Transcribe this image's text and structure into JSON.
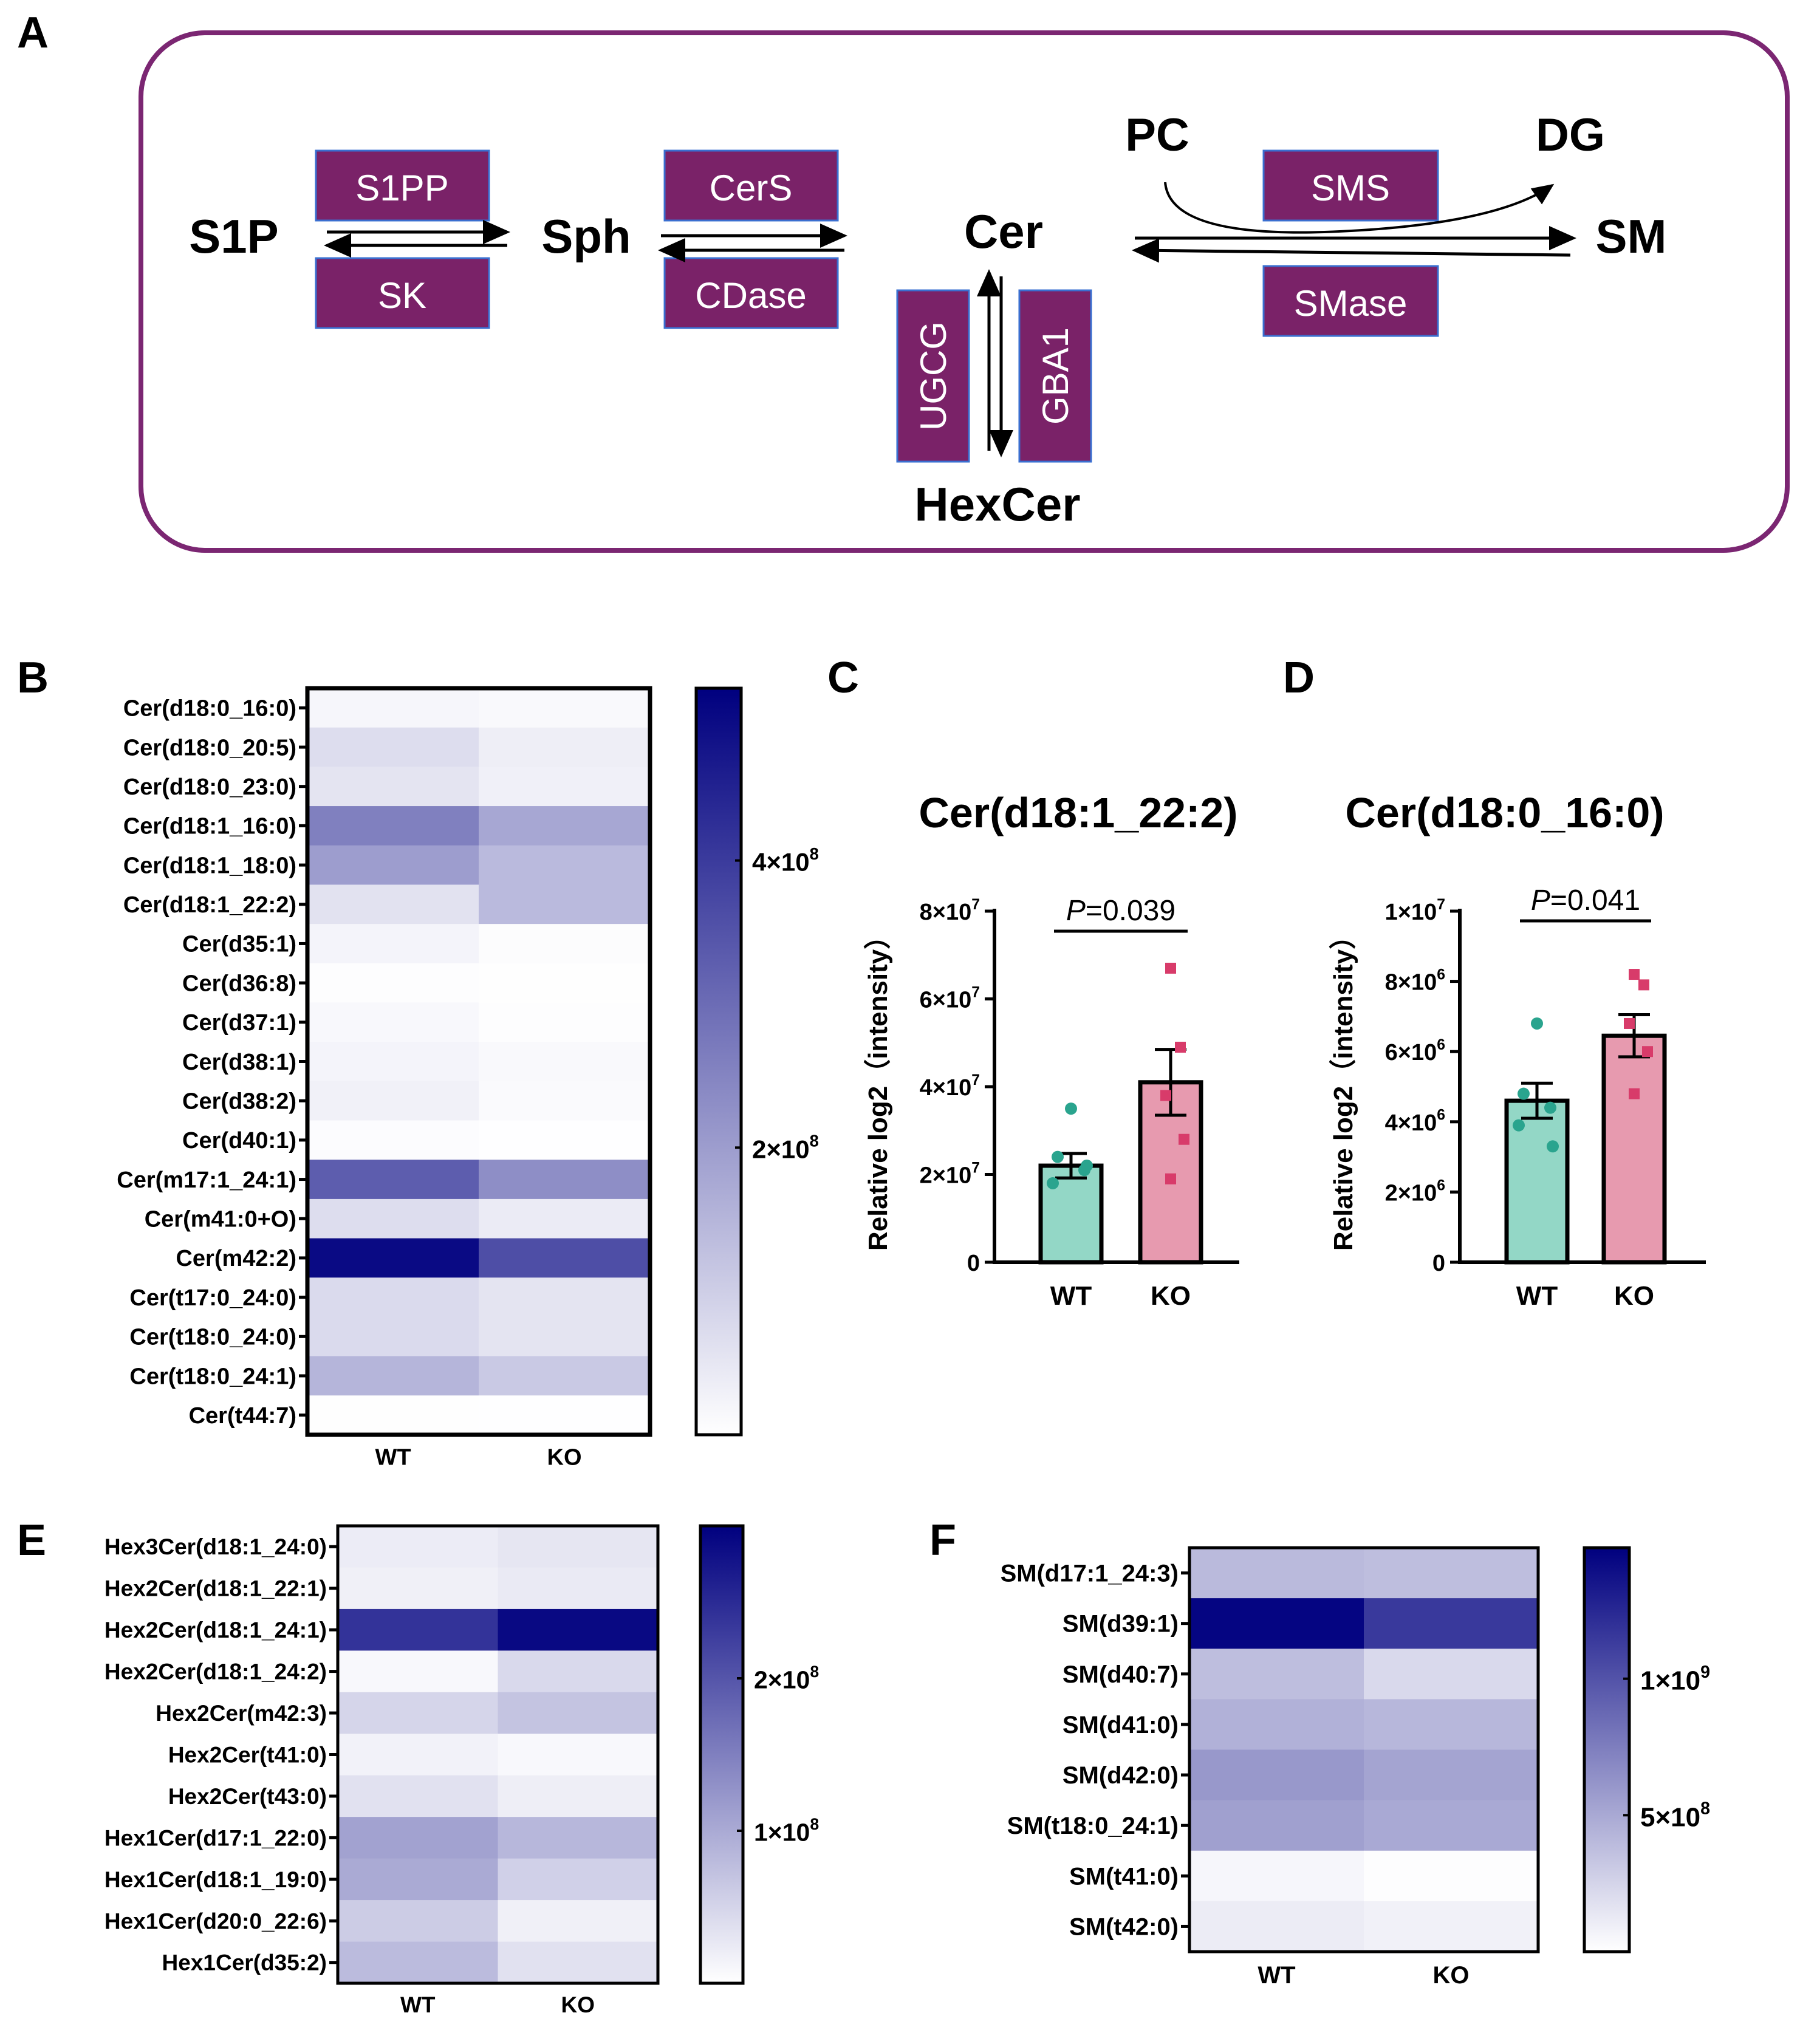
{
  "panels": {
    "A": "A",
    "B": "B",
    "C": "C",
    "D": "D",
    "E": "E",
    "F": "F"
  },
  "pathway": {
    "metabolites": {
      "s1p": "S1P",
      "sph": "Sph",
      "cer": "Cer",
      "sm": "SM",
      "hexcer": "HexCer",
      "pc": "PC",
      "dg": "DG"
    },
    "enzymes": {
      "s1pp": "S1PP",
      "sk": "SK",
      "cers": "CerS",
      "cdase": "CDase",
      "ugcg": "UGCG",
      "gba1": "GBA1",
      "sms": "SMS",
      "smase": "SMase"
    },
    "colors": {
      "enzyme_box": "#7a2268",
      "frame": "#7b2672",
      "enzyme_text": "#ffffff"
    }
  },
  "colors": {
    "heat_low": "#ffffff",
    "heat_high": "#00007f",
    "wt_bar": "#93d7c6",
    "ko_bar": "#e79aaf",
    "wt_dot": "#2aa48e",
    "ko_dot": "#d83b6a"
  },
  "chart_data": [
    {
      "panel": "B",
      "type": "heatmap",
      "columns": [
        "WT",
        "KO"
      ],
      "rows": [
        "Cer(d18:0_16:0)",
        "Cer(d18:0_20:5)",
        "Cer(d18:0_23:0)",
        "Cer(d18:1_16:0)",
        "Cer(d18:1_18:0)",
        "Cer(d18:1_22:2)",
        "Cer(d35:1)",
        "Cer(d36:8)",
        "Cer(d37:1)",
        "Cer(d38:1)",
        "Cer(d38:2)",
        "Cer(d40:1)",
        "Cer(m17:1_24:1)",
        "Cer(m41:0+O)",
        "Cer(m42:2)",
        "Cer(t17:0_24:0)",
        "Cer(t18:0_24:0)",
        "Cer(t18:0_24:1)",
        "Cer(t44:7)"
      ],
      "values": [
        [
          18000000,
          12000000
        ],
        [
          70000000,
          35000000
        ],
        [
          55000000,
          30000000
        ],
        [
          260000000,
          180000000
        ],
        [
          200000000,
          140000000
        ],
        [
          60000000,
          140000000
        ],
        [
          22000000,
          7000000
        ],
        [
          4000000,
          3000000
        ],
        [
          14000000,
          5000000
        ],
        [
          22000000,
          12000000
        ],
        [
          28000000,
          10000000
        ],
        [
          6000000,
          2000000
        ],
        [
          330000000,
          230000000
        ],
        [
          70000000,
          40000000
        ],
        [
          500000000,
          360000000
        ],
        [
          75000000,
          55000000
        ],
        [
          75000000,
          55000000
        ],
        [
          150000000,
          110000000
        ],
        [
          3000000,
          2000000
        ]
      ],
      "vmin": 0,
      "vmax": 520000000,
      "colorbar_ticks": [
        {
          "value": 200000000,
          "label": "2×10",
          "exp": "8"
        },
        {
          "value": 400000000,
          "label": "4×10",
          "exp": "8"
        }
      ]
    },
    {
      "panel": "C",
      "type": "bar",
      "title": "Cer(d18:1_22:2)",
      "ylabel": "Relative log2（intensity）",
      "categories": [
        "WT",
        "KO"
      ],
      "values": [
        22000000,
        41000000
      ],
      "sem": [
        2800000,
        7500000
      ],
      "points": [
        [
          35000000,
          24000000,
          21000000,
          18000000,
          22000000
        ],
        [
          67000000,
          49000000,
          38000000,
          28000000,
          19000000
        ]
      ],
      "ylim": [
        0,
        80000000
      ],
      "yticks": [
        {
          "value": 0,
          "label": "0",
          "exp": ""
        },
        {
          "value": 20000000,
          "label": "2×10",
          "exp": "7"
        },
        {
          "value": 40000000,
          "label": "4×10",
          "exp": "7"
        },
        {
          "value": 60000000,
          "label": "6×10",
          "exp": "7"
        },
        {
          "value": 80000000,
          "label": "8×10",
          "exp": "7"
        }
      ],
      "pvalue": {
        "italic": "P",
        "text": "=0.039"
      }
    },
    {
      "panel": "D",
      "type": "bar",
      "title": "Cer(d18:0_16:0)",
      "ylabel": "Relative log2（intensity）",
      "categories": [
        "WT",
        "KO"
      ],
      "values": [
        4600000,
        6450000
      ],
      "sem": [
        500000,
        600000
      ],
      "points": [
        [
          6800000,
          4800000,
          4400000,
          3900000,
          3300000
        ],
        [
          8200000,
          7900000,
          6800000,
          6000000,
          4800000
        ]
      ],
      "ylim": [
        0,
        10000000
      ],
      "yticks": [
        {
          "value": 0,
          "label": "0",
          "exp": ""
        },
        {
          "value": 2000000,
          "label": "2×10",
          "exp": "6"
        },
        {
          "value": 4000000,
          "label": "4×10",
          "exp": "6"
        },
        {
          "value": 6000000,
          "label": "6×10",
          "exp": "6"
        },
        {
          "value": 8000000,
          "label": "8×10",
          "exp": "6"
        },
        {
          "value": 10000000,
          "label": "1×10",
          "exp": "7"
        }
      ],
      "pvalue": {
        "italic": "P",
        "text": "=0.041"
      }
    },
    {
      "panel": "E",
      "type": "heatmap",
      "columns": [
        "WT",
        "KO"
      ],
      "rows": [
        "Hex3Cer(d18:1_24:0)",
        "Hex2Cer(d18:1_22:1)",
        "Hex2Cer(d18:1_24:1)",
        "Hex2Cer(d18:1_24:2)",
        "Hex2Cer(m42:3)",
        "Hex2Cer(t41:0)",
        "Hex2Cer(t43:0)",
        "Hex1Cer(d17:1_22:0)",
        "Hex1Cer(d18:1_19:0)",
        "Hex1Cer(d20:0_22:6)",
        "Hex1Cer(d35:2)"
      ],
      "values": [
        [
          22000000,
          30000000
        ],
        [
          18000000,
          25000000
        ],
        [
          240000000,
          290000000
        ],
        [
          8000000,
          45000000
        ],
        [
          50000000,
          70000000
        ],
        [
          15000000,
          8000000
        ],
        [
          35000000,
          20000000
        ],
        [
          110000000,
          85000000
        ],
        [
          100000000,
          55000000
        ],
        [
          60000000,
          18000000
        ],
        [
          80000000,
          35000000
        ]
      ],
      "vmin": 0,
      "vmax": 300000000,
      "colorbar_ticks": [
        {
          "value": 100000000,
          "label": "1×10",
          "exp": "8"
        },
        {
          "value": 200000000,
          "label": "2×10",
          "exp": "8"
        }
      ]
    },
    {
      "panel": "F",
      "type": "heatmap",
      "columns": [
        "WT",
        "KO"
      ],
      "rows": [
        "SM(d17:1_24:3)",
        "SM(d39:1)",
        "SM(d40:7)",
        "SM(d41:0)",
        "SM(d42:0)",
        "SM(t18:0_24:1)",
        "SM(t41:0)",
        "SM(t42:0)"
      ],
      "values": [
        [
          400000000,
          380000000
        ],
        [
          1450000000,
          1150000000
        ],
        [
          380000000,
          220000000
        ],
        [
          450000000,
          420000000
        ],
        [
          600000000,
          530000000
        ],
        [
          550000000,
          500000000
        ],
        [
          50000000,
          10000000
        ],
        [
          110000000,
          80000000
        ]
      ],
      "vmin": 0,
      "vmax": 1480000000,
      "colorbar_ticks": [
        {
          "value": 500000000,
          "label": "5×10",
          "exp": "8"
        },
        {
          "value": 1000000000,
          "label": "1×10",
          "exp": "9"
        }
      ]
    }
  ]
}
